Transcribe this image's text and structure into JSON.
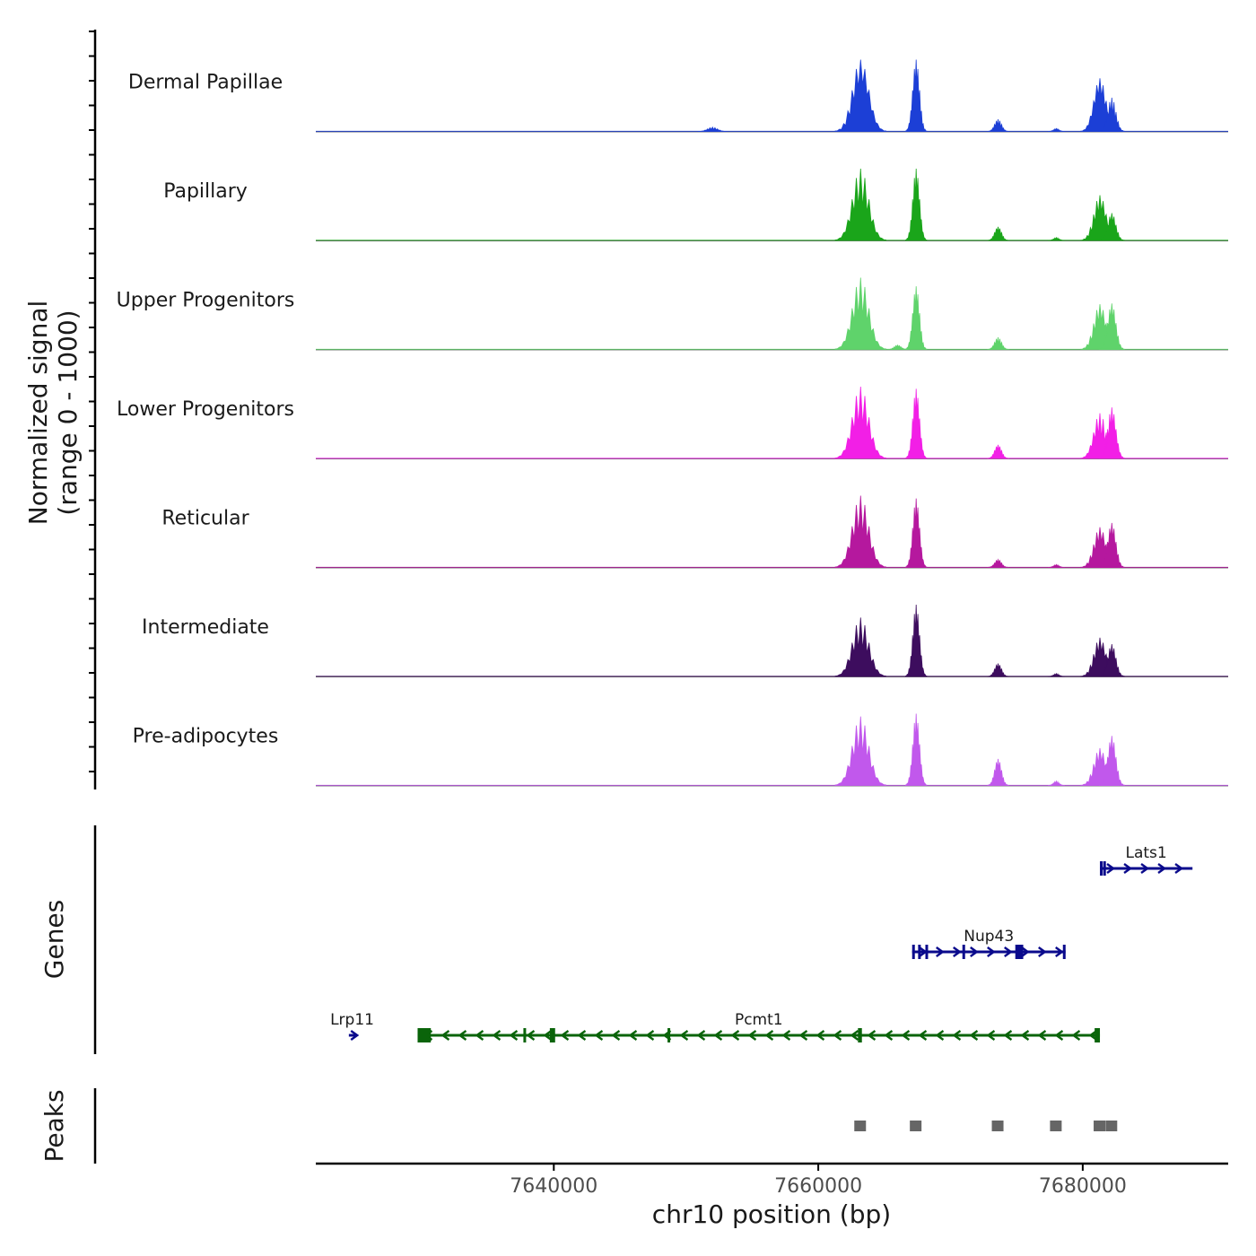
{
  "chart_data": {
    "type": "area",
    "title": "",
    "chromosome": "chr10",
    "xlabel": "chr10 position (bp)",
    "ylabel_line1": "Normalized signal",
    "ylabel_line2": "(range 0 - 1000)",
    "xlim": [
      7622000,
      7691000
    ],
    "x_ticks": [
      {
        "value": 7640000,
        "label": "7640000"
      },
      {
        "value": 7660000,
        "label": "7660000"
      },
      {
        "value": 7680000,
        "label": "7680000"
      }
    ],
    "ylim": [
      0,
      1000
    ],
    "peak_sites": [
      7663200,
      7667400,
      7673600,
      7678000,
      7681300,
      7682200
    ],
    "tracks": [
      {
        "name": "Dermal Papillae",
        "color": "#1c3fd6",
        "peaks": [
          {
            "pos": 7652000,
            "height": 60,
            "width": 700
          },
          {
            "pos": 7663200,
            "height": 1000,
            "width": 1200
          },
          {
            "pos": 7667400,
            "height": 1000,
            "width": 500
          },
          {
            "pos": 7673600,
            "height": 170,
            "width": 500
          },
          {
            "pos": 7678000,
            "height": 40,
            "width": 400
          },
          {
            "pos": 7681300,
            "height": 740,
            "width": 900
          },
          {
            "pos": 7682200,
            "height": 470,
            "width": 600
          }
        ]
      },
      {
        "name": "Papillary",
        "color": "#1aa51a",
        "peaks": [
          {
            "pos": 7663200,
            "height": 1000,
            "width": 1200
          },
          {
            "pos": 7667400,
            "height": 1000,
            "width": 500
          },
          {
            "pos": 7673600,
            "height": 190,
            "width": 500
          },
          {
            "pos": 7678000,
            "height": 40,
            "width": 400
          },
          {
            "pos": 7681300,
            "height": 630,
            "width": 900
          },
          {
            "pos": 7682200,
            "height": 380,
            "width": 600
          }
        ]
      },
      {
        "name": "Upper Progenitors",
        "color": "#5fd36b",
        "peaks": [
          {
            "pos": 7663200,
            "height": 1000,
            "width": 1200
          },
          {
            "pos": 7666000,
            "height": 60,
            "width": 500
          },
          {
            "pos": 7667400,
            "height": 880,
            "width": 500
          },
          {
            "pos": 7673600,
            "height": 170,
            "width": 500
          },
          {
            "pos": 7681300,
            "height": 630,
            "width": 900
          },
          {
            "pos": 7682200,
            "height": 640,
            "width": 600
          }
        ]
      },
      {
        "name": "Lower Progenitors",
        "color": "#f21fe6",
        "peaks": [
          {
            "pos": 7663200,
            "height": 1000,
            "width": 1200
          },
          {
            "pos": 7667400,
            "height": 970,
            "width": 500
          },
          {
            "pos": 7673600,
            "height": 190,
            "width": 500
          },
          {
            "pos": 7681300,
            "height": 630,
            "width": 900
          },
          {
            "pos": 7682200,
            "height": 710,
            "width": 600
          }
        ]
      },
      {
        "name": "Reticular",
        "color": "#b5189e",
        "peaks": [
          {
            "pos": 7663200,
            "height": 1000,
            "width": 1200
          },
          {
            "pos": 7667400,
            "height": 960,
            "width": 500
          },
          {
            "pos": 7673600,
            "height": 110,
            "width": 500
          },
          {
            "pos": 7678000,
            "height": 40,
            "width": 400
          },
          {
            "pos": 7681300,
            "height": 560,
            "width": 900
          },
          {
            "pos": 7682200,
            "height": 620,
            "width": 600
          }
        ]
      },
      {
        "name": "Intermediate",
        "color": "#3d0d5e",
        "peaks": [
          {
            "pos": 7663200,
            "height": 820,
            "width": 1200
          },
          {
            "pos": 7667400,
            "height": 1000,
            "width": 500
          },
          {
            "pos": 7673600,
            "height": 180,
            "width": 500
          },
          {
            "pos": 7678000,
            "height": 40,
            "width": 400
          },
          {
            "pos": 7681300,
            "height": 540,
            "width": 900
          },
          {
            "pos": 7682200,
            "height": 450,
            "width": 600
          }
        ]
      },
      {
        "name": "Pre-adipocytes",
        "color": "#c158ec",
        "peaks": [
          {
            "pos": 7663200,
            "height": 960,
            "width": 1200
          },
          {
            "pos": 7667400,
            "height": 1000,
            "width": 500
          },
          {
            "pos": 7673600,
            "height": 370,
            "width": 500
          },
          {
            "pos": 7678000,
            "height": 60,
            "width": 400
          },
          {
            "pos": 7681300,
            "height": 520,
            "width": 900
          },
          {
            "pos": 7682200,
            "height": 690,
            "width": 600
          }
        ]
      }
    ],
    "genes_label": "Genes",
    "peaks_label": "Peaks",
    "genes": [
      {
        "name": "Lats1",
        "strand": "+",
        "color": "#0a0a8c",
        "start": 7681300,
        "end": 7688300,
        "row": 1,
        "exons": [
          [
            7681300,
            7681450
          ],
          [
            7681550,
            7681650
          ]
        ]
      },
      {
        "name": "Nup43",
        "strand": "+",
        "color": "#0a0a8c",
        "start": 7667100,
        "end": 7678700,
        "row": 2,
        "exons": [
          [
            7667100,
            7667250
          ],
          [
            7667550,
            7667750
          ],
          [
            7668100,
            7668300
          ],
          [
            7670900,
            7671100
          ],
          [
            7674900,
            7675500
          ],
          [
            7678500,
            7678700
          ]
        ]
      },
      {
        "name": "Lrp11",
        "strand": "+",
        "color": "#0a0a8c",
        "start": 7624500,
        "end": 7625000,
        "row": 3,
        "exons": []
      },
      {
        "name": "Pcmt1",
        "strand": "-",
        "color": "#0a640a",
        "start": 7629700,
        "end": 7681300,
        "row": 3,
        "exons": [
          [
            7629700,
            7630700
          ],
          [
            7637700,
            7637900
          ],
          [
            7639700,
            7640100
          ],
          [
            7648600,
            7648800
          ],
          [
            7663000,
            7663300
          ],
          [
            7680900,
            7681300
          ]
        ]
      }
    ]
  }
}
